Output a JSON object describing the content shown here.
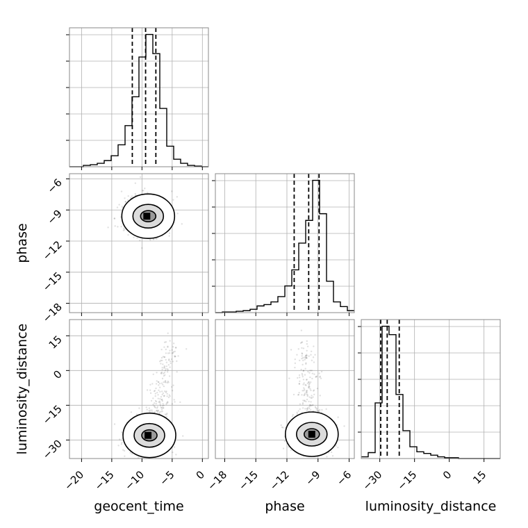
{
  "chart_data": {
    "type": "corner",
    "parameters": [
      "geocent_time",
      "phase",
      "luminosity_distance"
    ],
    "ranges": {
      "geocent_time": [
        -22,
        1
      ],
      "phase": [
        -18.9,
        -5.5
      ],
      "luminosity_distance": [
        -38,
        22
      ]
    },
    "ticks": {
      "geocent_time": [
        "-20",
        "-15",
        "-10",
        "-5",
        "0"
      ],
      "phase": [
        "-18",
        "-15",
        "-12",
        "-9",
        "-6"
      ],
      "luminosity_distance": [
        "-30",
        "-15",
        "0",
        "15"
      ]
    },
    "grid": true,
    "quantile_lines": {
      "geocent_time": [
        -11.6,
        -9.4,
        -7.7
      ],
      "phase": [
        -11.3,
        -9.9,
        -8.9
      ],
      "luminosity_distance": [
        -29.6,
        -26.8,
        -21.6
      ]
    },
    "histograms": {
      "geocent_time": {
        "edges": [
          -22,
          -20.85,
          -19.7,
          -18.55,
          -17.4,
          -16.25,
          -15.1,
          -13.95,
          -12.8,
          -11.65,
          -10.5,
          -9.35,
          -8.2,
          -7.05,
          -5.9,
          -4.75,
          -3.6,
          -2.45,
          -1.3,
          -0.15,
          1
        ],
        "counts": [
          0,
          0,
          2,
          3,
          5,
          9,
          16,
          32,
          60,
          102,
          160,
          193,
          165,
          85,
          30,
          11,
          5,
          2,
          1,
          0
        ]
      },
      "phase": {
        "edges": [
          -18.9,
          -18.23,
          -17.56,
          -16.89,
          -16.22,
          -15.55,
          -14.88,
          -14.21,
          -13.54,
          -12.87,
          -12.2,
          -11.53,
          -10.86,
          -10.19,
          -9.52,
          -8.85,
          -8.18,
          -7.51,
          -6.84,
          -6.17,
          -5.5
        ],
        "counts": [
          0,
          1,
          1,
          2,
          3,
          5,
          10,
          12,
          16,
          24,
          40,
          64,
          104,
          138,
          198,
          148,
          47,
          16,
          9,
          3
        ]
      },
      "luminosity_distance": {
        "edges": [
          -38,
          -35,
          -32,
          -29,
          -26,
          -23,
          -20,
          -17,
          -14,
          -11,
          -8,
          -5,
          -2,
          1,
          4,
          7,
          10,
          13,
          16,
          19,
          22
        ],
        "counts": [
          2,
          7,
          66,
          157,
          147,
          76,
          33,
          14,
          8,
          6,
          4,
          2,
          1,
          1,
          0,
          0,
          0,
          0,
          0,
          0
        ]
      }
    },
    "density_peaks": [
      {
        "x": "geocent_time",
        "y": "phase",
        "peak": [
          -9.2,
          -9.6
        ]
      },
      {
        "x": "geocent_time",
        "y": "luminosity_distance",
        "peak": [
          -9.0,
          -28.0
        ]
      },
      {
        "x": "phase",
        "y": "luminosity_distance",
        "peak": [
          -9.6,
          -27.5
        ]
      }
    ]
  }
}
